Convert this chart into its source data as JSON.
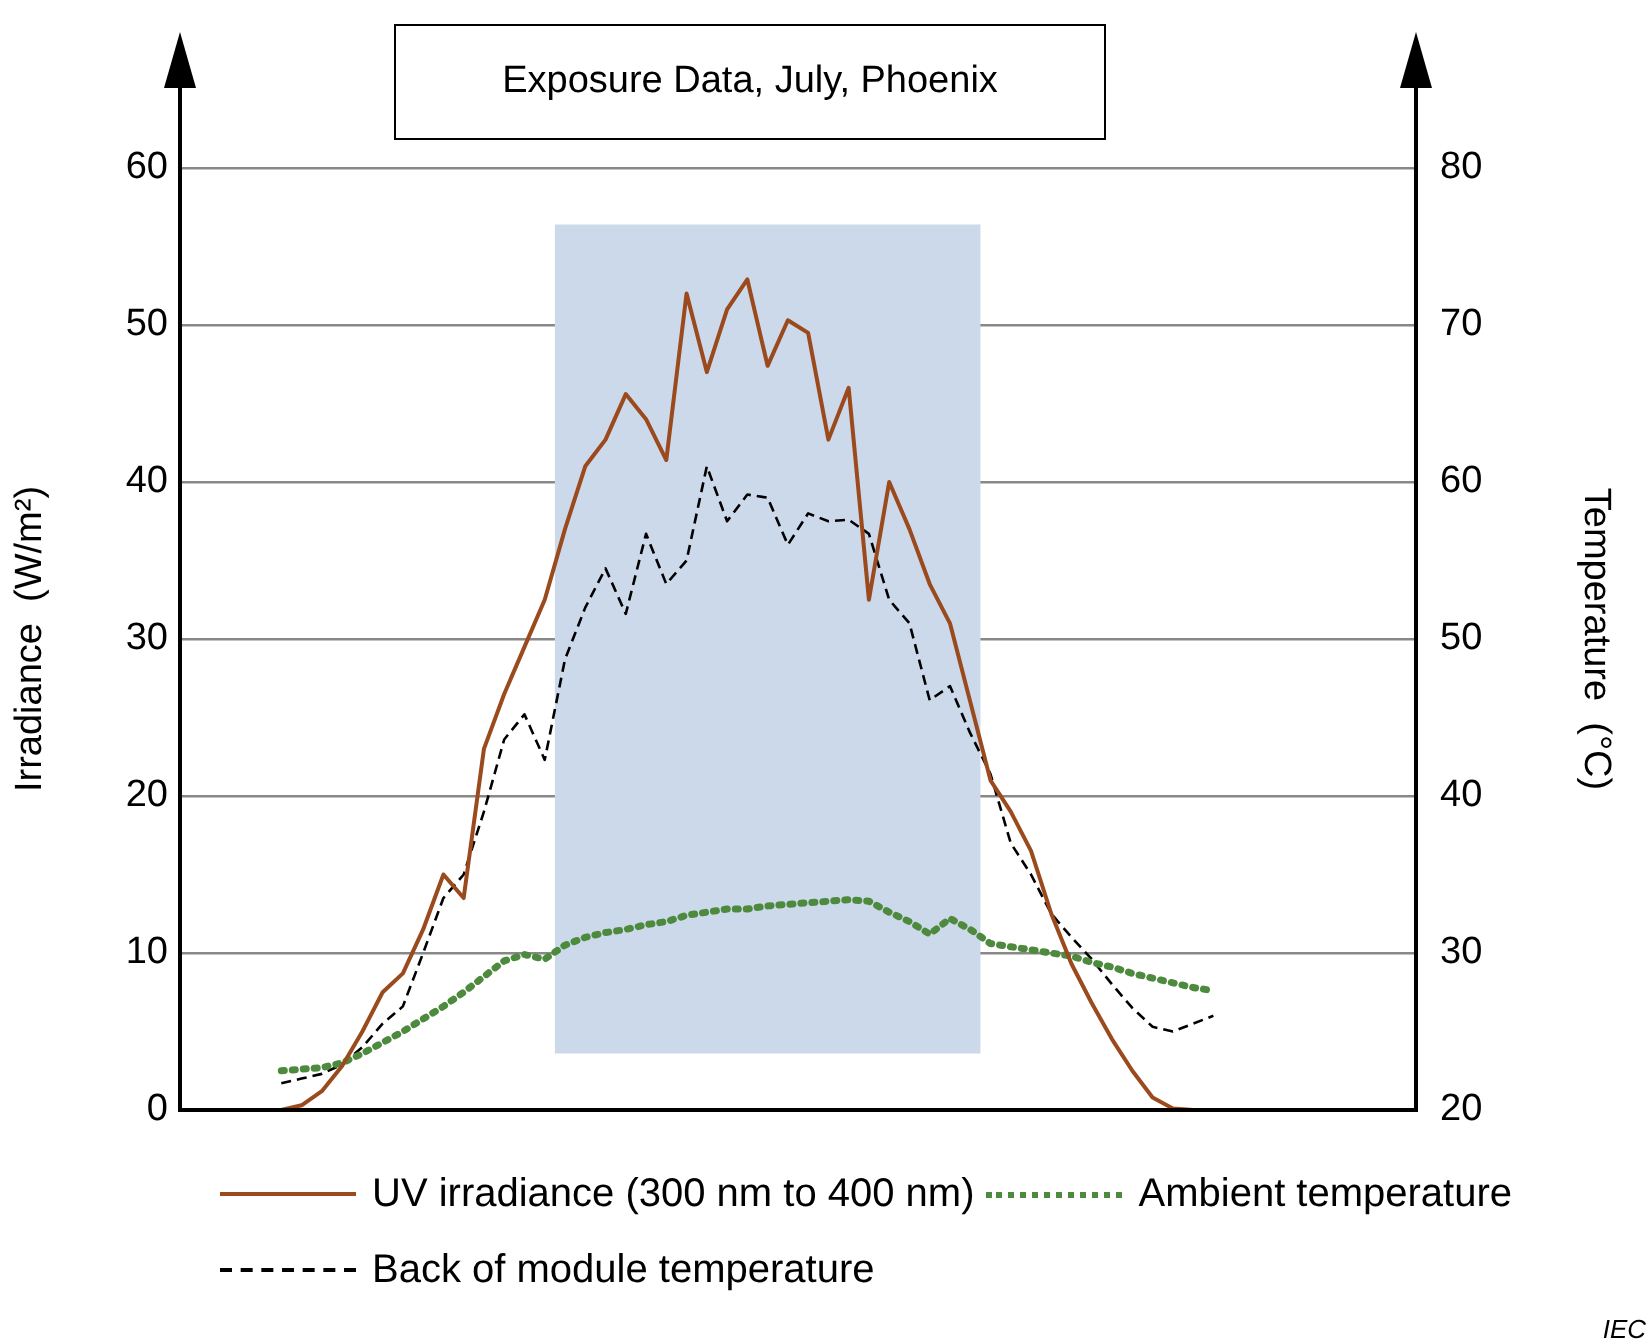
{
  "chart_data": {
    "type": "line",
    "title": "Exposure Data, July, Phoenix",
    "ylabel": "Irradiance  (W/m²)",
    "y2label": "Temperature  (°C)",
    "categories": [
      null,
      null,
      null,
      null,
      null,
      null,
      null,
      null,
      null,
      null,
      null,
      null,
      null,
      null,
      null,
      null,
      null,
      null,
      null,
      null,
      null,
      null,
      null,
      null,
      null,
      null,
      null,
      null,
      null,
      null,
      null,
      null,
      null,
      null,
      null,
      null,
      null,
      null,
      null,
      null,
      null,
      null,
      null,
      null,
      null,
      null,
      null,
      null,
      null,
      null,
      null,
      null,
      null,
      null,
      null,
      null,
      null,
      null,
      null,
      null,
      null,
      null
    ],
    "series": [
      {
        "name": "UV irradiance (300 nm to 400 nm)",
        "color": "#9a4a1c",
        "line_style": "solid",
        "values": [
          null,
          null,
          null,
          null,
          null,
          0,
          0.3,
          1.2,
          2.8,
          5,
          7.5,
          8.7,
          11.5,
          15,
          13.5,
          23,
          26.5,
          29.5,
          32.5,
          37,
          41,
          42.7,
          45.6,
          44,
          41.4,
          52,
          47,
          51,
          52.9,
          47.4,
          50.3,
          49.5,
          42.7,
          46,
          32.5,
          40,
          37,
          33.5,
          31,
          26,
          21,
          19,
          16.5,
          12.5,
          9.3,
          6.8,
          4.5,
          2.5,
          0.8,
          0.1,
          0,
          0,
          null,
          null,
          null,
          null,
          null,
          null,
          null,
          null,
          null,
          null
        ]
      },
      {
        "name": "Ambient temperature",
        "color": "#4e8a3e",
        "line_style": "dotted",
        "axis": "y2",
        "values": [
          null,
          null,
          null,
          null,
          null,
          22.5,
          22.6,
          22.7,
          23,
          23.6,
          24.3,
          25,
          25.8,
          26.6,
          27.5,
          28.5,
          29.5,
          29.9,
          29.6,
          30.5,
          31,
          31.3,
          31.5,
          31.8,
          32,
          32.4,
          32.6,
          32.8,
          32.8,
          33,
          33.1,
          33.2,
          33.3,
          33.4,
          33.3,
          32.6,
          32,
          31.2,
          32.2,
          31.5,
          30.6,
          30.4,
          30.2,
          30,
          29.8,
          29.4,
          29.1,
          28.7,
          28.4,
          28.1,
          27.8,
          27.6,
          null,
          null,
          null,
          null,
          null,
          null,
          null,
          null,
          null,
          null
        ]
      },
      {
        "name": "Back of module temperature",
        "color": "#000000",
        "line_style": "dashed",
        "axis": "y2",
        "values": [
          null,
          null,
          null,
          null,
          null,
          21.7,
          22,
          22.3,
          22.9,
          24,
          25.5,
          26.6,
          30,
          33.5,
          35,
          39,
          43.6,
          45.2,
          42.3,
          48.7,
          52,
          54.5,
          51.6,
          56.7,
          53.5,
          55,
          61,
          57.5,
          59.2,
          59,
          56,
          58,
          57.5,
          57.6,
          56.7,
          52.5,
          51,
          46.1,
          47,
          44,
          41.4,
          37,
          35,
          32.5,
          31,
          29.6,
          28,
          26.5,
          25.3,
          25,
          25.5,
          26,
          null,
          null,
          null,
          null,
          null,
          null,
          null,
          null,
          null,
          null
        ]
      }
    ],
    "ylim": [
      0,
      60
    ],
    "yticks": [
      0,
      10,
      20,
      30,
      40,
      50,
      60
    ],
    "y2lim": [
      20,
      80
    ],
    "y2ticks": [
      20,
      30,
      40,
      50,
      60,
      70,
      80
    ],
    "grid": "y",
    "legend": "bottom",
    "marker": "none",
    "tick_labels": "y",
    "annotations": [
      "IEC"
    ]
  }
}
